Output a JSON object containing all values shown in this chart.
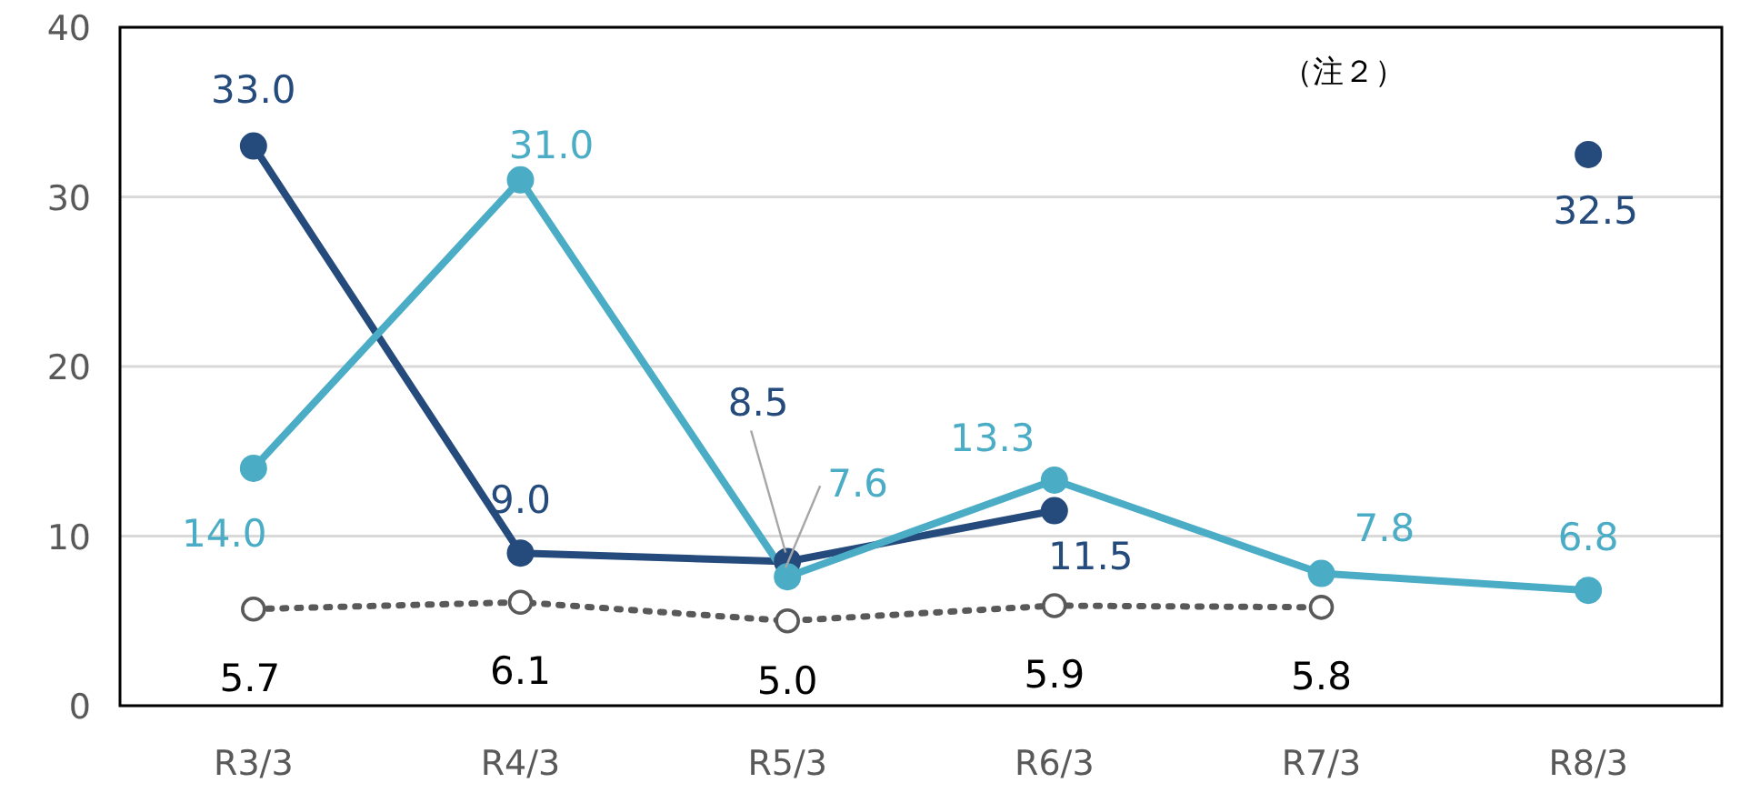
{
  "chart_data": {
    "type": "line",
    "categories": [
      "R3/3",
      "R4/3",
      "R5/3",
      "R6/3",
      "R7/3",
      "R8/3"
    ],
    "series": [
      {
        "color": "#254a7c",
        "values": [
          33.0,
          9.0,
          8.5,
          11.5,
          null,
          32.5
        ],
        "value_labels": [
          "33.0",
          "9.0",
          "8.5",
          "11.5",
          null,
          "32.5"
        ]
      },
      {
        "color": "#4bacc6",
        "values": [
          14.0,
          31.0,
          7.6,
          13.3,
          7.8,
          6.8
        ],
        "value_labels": [
          "14.0",
          "31.0",
          "7.6",
          "13.3",
          "7.8",
          "6.8"
        ]
      },
      {
        "color": "#595959",
        "line_style": "dotted",
        "values": [
          5.7,
          6.1,
          5.0,
          5.9,
          5.8,
          null
        ],
        "value_labels": [
          "5.7",
          "6.1",
          "5.0",
          "5.9",
          "5.8",
          null
        ]
      }
    ],
    "ylim": [
      0,
      40
    ],
    "yticks": [
      0,
      10,
      20,
      30,
      40
    ],
    "grid": "y",
    "marker": "circle",
    "annotations": [
      "（注２）"
    ]
  }
}
